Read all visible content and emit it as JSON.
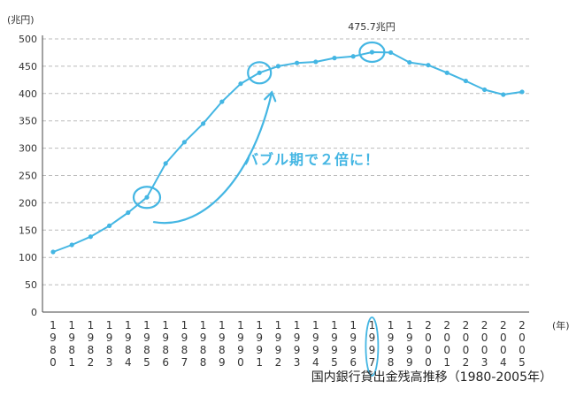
{
  "chart_data": {
    "type": "line",
    "y_unit_label": "(兆円)",
    "x_unit_label": "(年)",
    "caption": "国内銀行貸出金残高推移（1980-2005年）",
    "x": [
      "1980",
      "1981",
      "1982",
      "1983",
      "1984",
      "1985",
      "1986",
      "1987",
      "1988",
      "1989",
      "1990",
      "1991",
      "1992",
      "1993",
      "1994",
      "1995",
      "1996",
      "1997",
      "1998",
      "1999",
      "2000",
      "2001",
      "2002",
      "2003",
      "2004",
      "2005"
    ],
    "values": [
      110,
      123,
      138,
      158,
      182,
      210,
      272,
      311,
      345,
      385,
      418,
      438,
      450,
      456,
      458,
      465,
      468,
      475.7,
      475,
      457,
      452,
      438,
      423,
      407,
      398,
      403
    ],
    "ylim": [
      0,
      500
    ],
    "yticks": [
      0,
      50,
      100,
      150,
      200,
      250,
      300,
      350,
      400,
      450,
      500
    ],
    "grid": true,
    "peak_label": "475.7兆円",
    "callout_text": "バブル期で２倍に！",
    "colors": {
      "line": "#44b6e3",
      "grid": "#bbbbbb",
      "axis": "#444444"
    }
  }
}
